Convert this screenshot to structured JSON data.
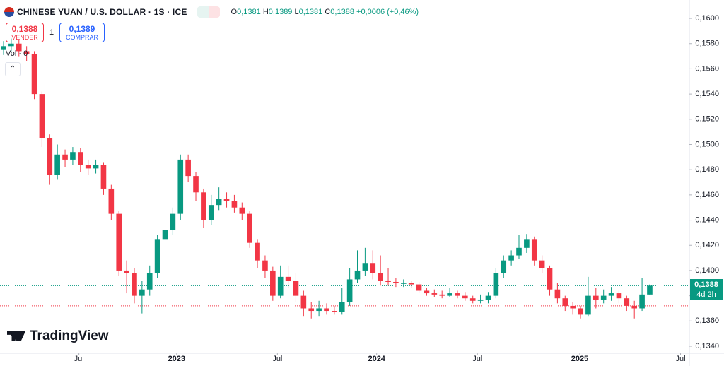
{
  "header": {
    "symbol": "CHINESE YUAN / U.S. DOLLAR · 1S · ICE",
    "ohlc": [
      {
        "key": "O",
        "value": "0,1381"
      },
      {
        "key": "H",
        "value": "0,1389"
      },
      {
        "key": "L",
        "value": "0,1381"
      },
      {
        "key": "C",
        "value": "0,1388"
      }
    ],
    "change": "+0,0006 (+0,46%)"
  },
  "trade": {
    "sell_price": "0,1388",
    "sell_label": "VENDER",
    "quantity": "1",
    "buy_price": "0,1389",
    "buy_label": "COMPRAR"
  },
  "volume_label": "Vol · 0",
  "brand": "TradingView",
  "countdown": "4d 2h",
  "chart_data": {
    "type": "candlestick",
    "up_color": "#089981",
    "down_color": "#f23645",
    "open": [
      0.1575,
      0.1578,
      0.158,
      0.1574,
      0.1572,
      0.154,
      0.1505,
      0.1476,
      0.1492,
      0.1488,
      0.1494,
      0.1484,
      0.1481,
      0.1484,
      0.1465,
      0.1445,
      0.14,
      0.1398,
      0.138,
      0.1385,
      0.1398,
      0.1425,
      0.1432,
      0.1445,
      0.1488,
      0.1475,
      0.1462,
      0.144,
      0.1452,
      0.1457,
      0.1455,
      0.145,
      0.1445,
      0.1422,
      0.1408,
      0.14,
      0.138,
      0.1395,
      0.1392,
      0.138,
      0.137,
      0.1368,
      0.137,
      0.1368,
      0.1367,
      0.1375,
      0.1393,
      0.14,
      0.1406,
      0.1398,
      0.1392,
      0.1391,
      0.139,
      0.139,
      0.1389,
      0.1384,
      0.1382,
      0.1381,
      0.138,
      0.1382,
      0.138,
      0.1378,
      0.1376,
      0.1377,
      0.138,
      0.1398,
      0.1408,
      0.1412,
      0.1418,
      0.1425,
      0.1408,
      0.1402,
      0.1385,
      0.1378,
      0.1372,
      0.137,
      0.1365,
      0.138,
      0.1377,
      0.138,
      0.1382,
      0.1378,
      0.1372,
      0.137,
      0.1381
    ],
    "high": [
      0.1582,
      0.1584,
      0.1583,
      0.1578,
      0.1574,
      0.1542,
      0.1508,
      0.15,
      0.1496,
      0.1498,
      0.1497,
      0.1488,
      0.1488,
      0.1486,
      0.1468,
      0.1447,
      0.1408,
      0.1402,
      0.1392,
      0.1404,
      0.1428,
      0.144,
      0.145,
      0.1492,
      0.1492,
      0.1478,
      0.1465,
      0.146,
      0.1466,
      0.1462,
      0.146,
      0.1454,
      0.1447,
      0.1425,
      0.1412,
      0.1403,
      0.1404,
      0.1404,
      0.1398,
      0.1384,
      0.1375,
      0.1376,
      0.1374,
      0.1372,
      0.1386,
      0.1402,
      0.1416,
      0.1418,
      0.1416,
      0.1412,
      0.1402,
      0.1394,
      0.1393,
      0.1392,
      0.1391,
      0.1386,
      0.1385,
      0.1384,
      0.1386,
      0.1384,
      0.1383,
      0.138,
      0.1381,
      0.1383,
      0.1402,
      0.1412,
      0.1416,
      0.1428,
      0.1429,
      0.1427,
      0.1412,
      0.1404,
      0.139,
      0.138,
      0.1375,
      0.1372,
      0.1395,
      0.1386,
      0.1385,
      0.1387,
      0.1384,
      0.138,
      0.1376,
      0.1394,
      0.1389
    ],
    "low": [
      0.1571,
      0.1574,
      0.157,
      0.1566,
      0.1536,
      0.1498,
      0.1468,
      0.1472,
      0.1482,
      0.1484,
      0.1478,
      0.1476,
      0.1477,
      0.146,
      0.144,
      0.1396,
      0.1382,
      0.1374,
      0.1366,
      0.138,
      0.1394,
      0.142,
      0.1428,
      0.144,
      0.147,
      0.1455,
      0.1434,
      0.1436,
      0.1448,
      0.145,
      0.1446,
      0.144,
      0.1418,
      0.1402,
      0.1394,
      0.1376,
      0.1378,
      0.1386,
      0.1375,
      0.1364,
      0.1362,
      0.1364,
      0.1365,
      0.1365,
      0.1365,
      0.1372,
      0.139,
      0.1396,
      0.1393,
      0.1388,
      0.1388,
      0.1387,
      0.1387,
      0.1386,
      0.1382,
      0.138,
      0.1379,
      0.1378,
      0.1379,
      0.1378,
      0.1376,
      0.1374,
      0.1374,
      0.1374,
      0.1378,
      0.1394,
      0.1404,
      0.1409,
      0.1414,
      0.1404,
      0.1398,
      0.138,
      0.1374,
      0.1368,
      0.1365,
      0.1362,
      0.1364,
      0.137,
      0.1374,
      0.1376,
      0.1374,
      0.1368,
      0.1362,
      0.1368,
      0.1381
    ],
    "close": [
      0.1578,
      0.158,
      0.1574,
      0.1572,
      0.154,
      0.1505,
      0.1476,
      0.1492,
      0.1488,
      0.1494,
      0.1484,
      0.1481,
      0.1484,
      0.1465,
      0.1445,
      0.14,
      0.1398,
      0.138,
      0.1385,
      0.1398,
      0.1425,
      0.1432,
      0.1445,
      0.1488,
      0.1475,
      0.1462,
      0.144,
      0.1452,
      0.1457,
      0.1455,
      0.145,
      0.1445,
      0.1422,
      0.1408,
      0.14,
      0.138,
      0.1395,
      0.1392,
      0.138,
      0.137,
      0.1368,
      0.137,
      0.1368,
      0.1367,
      0.1375,
      0.1393,
      0.14,
      0.1406,
      0.1398,
      0.1392,
      0.1391,
      0.139,
      0.139,
      0.1389,
      0.1384,
      0.1382,
      0.1381,
      0.138,
      0.1382,
      0.138,
      0.1378,
      0.1376,
      0.1377,
      0.138,
      0.1398,
      0.1408,
      0.1412,
      0.1418,
      0.1425,
      0.1408,
      0.1402,
      0.1385,
      0.1378,
      0.1372,
      0.137,
      0.1365,
      0.138,
      0.1377,
      0.138,
      0.1382,
      0.1378,
      0.1372,
      0.137,
      0.1381,
      0.1388
    ],
    "xlim": [
      -0.46,
      89.15
    ],
    "xticks": [
      {
        "value": 9.8,
        "label": "Jul"
      },
      {
        "value": 22.5,
        "label": "2023"
      },
      {
        "value": 35.6,
        "label": "Jul"
      },
      {
        "value": 48.5,
        "label": "2024"
      },
      {
        "value": 61.6,
        "label": "Jul"
      },
      {
        "value": 74.9,
        "label": "2025"
      },
      {
        "value": 88,
        "label": "Jul"
      }
    ],
    "ylim": [
      0.13344,
      0.16146
    ],
    "yticks": [
      {
        "value": 0.134,
        "label": "0,1340"
      },
      {
        "value": 0.136,
        "label": "0,1360"
      },
      {
        "value": 0.138,
        "label": "0,1380"
      },
      {
        "value": 0.14,
        "label": "0,1400"
      },
      {
        "value": 0.142,
        "label": "0,1420"
      },
      {
        "value": 0.144,
        "label": "0,1440"
      },
      {
        "value": 0.146,
        "label": "0,1460"
      },
      {
        "value": 0.148,
        "label": "0,1480"
      },
      {
        "value": 0.15,
        "label": "0,1500"
      },
      {
        "value": 0.152,
        "label": "0,1520"
      },
      {
        "value": 0.154,
        "label": "0,1540"
      },
      {
        "value": 0.156,
        "label": "0,1560"
      },
      {
        "value": 0.158,
        "label": "0,1580"
      },
      {
        "value": 0.16,
        "label": "0,1600"
      }
    ],
    "last_price": {
      "value": 0.1388,
      "label": "0,1388"
    },
    "reference_line": 0.1372
  }
}
